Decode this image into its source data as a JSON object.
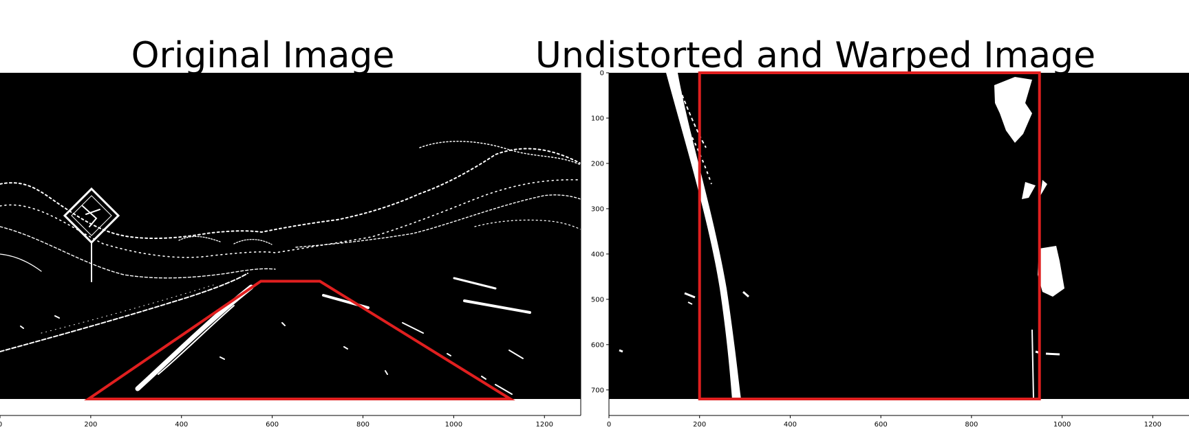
{
  "chart_data": [
    {
      "type": "image",
      "title": "Original Image",
      "xlim": [
        0,
        1280
      ],
      "ylim": [
        720,
        0
      ],
      "xticks": [
        0,
        200,
        400,
        600,
        800,
        1000,
        1200
      ],
      "yticks": [],
      "overlay": {
        "color": "#e01f1f",
        "shape": "polygon",
        "points": [
          [
            195,
            720
          ],
          [
            575,
            460
          ],
          [
            705,
            460
          ],
          [
            1125,
            720
          ]
        ]
      }
    },
    {
      "type": "image",
      "title": "Undistorted and Warped Image",
      "xlim": [
        0,
        1280
      ],
      "ylim": [
        720,
        0
      ],
      "xticks": [
        0,
        200,
        400,
        600,
        800,
        1000,
        1200
      ],
      "yticks": [
        0,
        100,
        200,
        300,
        400,
        500,
        600,
        700
      ],
      "overlay": {
        "color": "#e01f1f",
        "shape": "polygon",
        "points": [
          [
            200,
            0
          ],
          [
            950,
            0
          ],
          [
            950,
            720
          ],
          [
            200,
            720
          ]
        ]
      }
    }
  ]
}
